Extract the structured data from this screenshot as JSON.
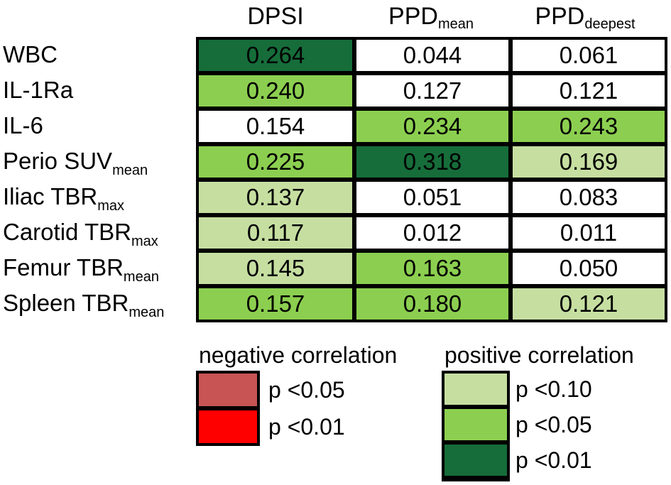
{
  "chart_data": {
    "type": "table",
    "title": "",
    "columns": [
      {
        "key": "dpsi",
        "main": "DPSI",
        "sub": ""
      },
      {
        "key": "ppd_mean",
        "main": "PPD",
        "sub": "mean"
      },
      {
        "key": "ppd_deepest",
        "main": "PPD",
        "sub": "deepest"
      }
    ],
    "rows": [
      {
        "main": "WBC",
        "sub": "",
        "values": [
          "0.264",
          "0.044",
          "0.061"
        ],
        "levels": [
          "p01",
          "none",
          "none"
        ]
      },
      {
        "main": "IL-1Ra",
        "sub": "",
        "values": [
          "0.240",
          "0.127",
          "0.121"
        ],
        "levels": [
          "p05",
          "none",
          "none"
        ]
      },
      {
        "main": "IL-6",
        "sub": "",
        "values": [
          "0.154",
          "0.234",
          "0.243"
        ],
        "levels": [
          "none",
          "p05",
          "p05"
        ]
      },
      {
        "main": "Perio SUV",
        "sub": "mean",
        "values": [
          "0.225",
          "0.318",
          "0.169"
        ],
        "levels": [
          "p05",
          "p01",
          "p10"
        ]
      },
      {
        "main": "Iliac TBR",
        "sub": "max",
        "values": [
          "0.137",
          "0.051",
          "0.083"
        ],
        "levels": [
          "p10",
          "none",
          "none"
        ]
      },
      {
        "main": "Carotid TBR",
        "sub": "max",
        "values": [
          "0.117",
          "0.012",
          "0.011"
        ],
        "levels": [
          "p10",
          "none",
          "none"
        ]
      },
      {
        "main": "Femur TBR",
        "sub": "mean",
        "values": [
          "0.145",
          "0.163",
          "0.050"
        ],
        "levels": [
          "p10",
          "p05",
          "none"
        ]
      },
      {
        "main": "Spleen TBR",
        "sub": "mean",
        "values": [
          "0.157",
          "0.180",
          "0.121"
        ],
        "levels": [
          "p05",
          "p05",
          "p10"
        ]
      }
    ],
    "colors": {
      "none": "#ffffff",
      "p10": "#c6dfa1",
      "p05": "#8ccf50",
      "p01": "#166d3a",
      "neg05": "#c85454",
      "neg01": "#ff0000"
    },
    "legend": {
      "negative": {
        "title": "negative correlation",
        "items": [
          {
            "label": "p <0.05",
            "level": "neg05"
          },
          {
            "label": "p <0.01",
            "level": "neg01"
          }
        ]
      },
      "positive": {
        "title": "positive correlation",
        "items": [
          {
            "label": "p <0.10",
            "level": "p10"
          },
          {
            "label": "p <0.05",
            "level": "p05"
          },
          {
            "label": "p <0.01",
            "level": "p01"
          }
        ]
      }
    }
  }
}
